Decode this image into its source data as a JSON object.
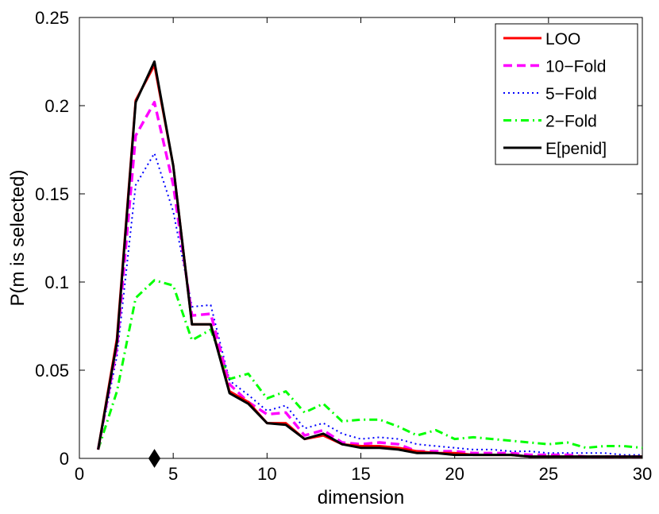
{
  "chart_data": {
    "type": "line",
    "xlabel": "dimension",
    "ylabel": "P(m is selected)",
    "xlim": [
      0,
      30
    ],
    "ylim": [
      0,
      0.25
    ],
    "xticks": [
      "0",
      "5",
      "10",
      "15",
      "20",
      "25",
      "30"
    ],
    "yticks": [
      "0",
      "0.05",
      "0.1",
      "0.15",
      "0.2",
      "0.25"
    ],
    "grid": false,
    "legend_position": "top-right",
    "x": [
      1,
      2,
      3,
      4,
      5,
      6,
      7,
      8,
      9,
      10,
      11,
      12,
      13,
      14,
      15,
      16,
      17,
      18,
      19,
      20,
      21,
      22,
      23,
      24,
      25,
      26,
      27,
      28,
      29,
      30
    ],
    "series": [
      {
        "name": "LOO",
        "color": "#ff0000",
        "style": "solid",
        "values": [
          0.005,
          0.068,
          0.203,
          0.223,
          0.166,
          0.076,
          0.076,
          0.038,
          0.032,
          0.02,
          0.02,
          0.011,
          0.013,
          0.008,
          0.007,
          0.007,
          0.006,
          0.004,
          0.003,
          0.003,
          0.002,
          0.002,
          0.002,
          0.001,
          0.001,
          0.001,
          0.001,
          0.001,
          0.001,
          0.001
        ]
      },
      {
        "name": "10−Fold",
        "color": "#ff00ff",
        "style": "dashed",
        "values": [
          0.005,
          0.063,
          0.183,
          0.202,
          0.155,
          0.081,
          0.082,
          0.042,
          0.032,
          0.025,
          0.026,
          0.013,
          0.016,
          0.009,
          0.008,
          0.009,
          0.008,
          0.004,
          0.004,
          0.004,
          0.003,
          0.003,
          0.003,
          0.002,
          0.002,
          0.002,
          0.001,
          0.001,
          0.001,
          0.001
        ]
      },
      {
        "name": "5−Fold",
        "color": "#0000ff",
        "style": "dotted",
        "values": [
          0.005,
          0.058,
          0.155,
          0.173,
          0.14,
          0.086,
          0.087,
          0.044,
          0.036,
          0.027,
          0.03,
          0.017,
          0.02,
          0.014,
          0.011,
          0.012,
          0.011,
          0.008,
          0.007,
          0.006,
          0.005,
          0.005,
          0.004,
          0.004,
          0.003,
          0.003,
          0.003,
          0.003,
          0.002,
          0.002
        ]
      },
      {
        "name": "2−Fold",
        "color": "#00ff00",
        "style": "dashdot",
        "values": [
          0.005,
          0.038,
          0.091,
          0.101,
          0.098,
          0.067,
          0.073,
          0.045,
          0.048,
          0.034,
          0.038,
          0.026,
          0.031,
          0.021,
          0.022,
          0.022,
          0.018,
          0.013,
          0.016,
          0.011,
          0.012,
          0.011,
          0.01,
          0.009,
          0.008,
          0.009,
          0.006,
          0.007,
          0.007,
          0.006
        ]
      },
      {
        "name": "E[penid]",
        "color": "#000000",
        "style": "solid",
        "values": [
          0.005,
          0.066,
          0.202,
          0.225,
          0.166,
          0.076,
          0.076,
          0.037,
          0.031,
          0.02,
          0.019,
          0.011,
          0.014,
          0.008,
          0.006,
          0.006,
          0.005,
          0.003,
          0.003,
          0.002,
          0.002,
          0.002,
          0.002,
          0.001,
          0.001,
          0.001,
          0.001,
          0.001,
          0.001,
          0.001
        ]
      }
    ],
    "marker": {
      "x": 4,
      "y": 0,
      "shape": "diamond",
      "color": "#000000"
    }
  }
}
